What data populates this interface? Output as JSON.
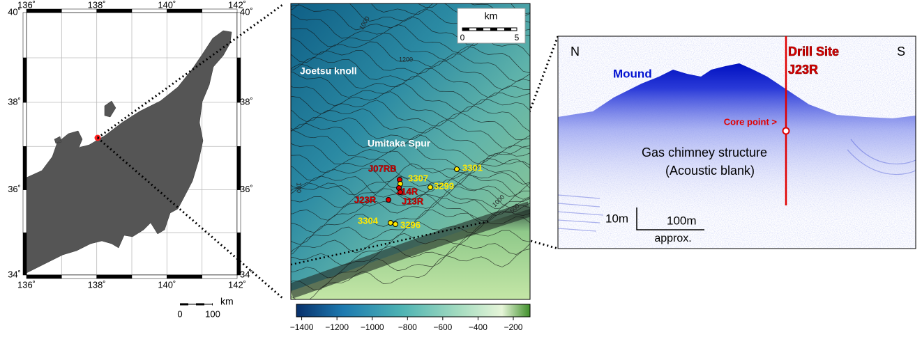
{
  "overview_map": {
    "lon_ticks": [
      {
        "value": 136,
        "label": "136˚"
      },
      {
        "value": 138,
        "label": "138˚"
      },
      {
        "value": 140,
        "label": "140˚"
      },
      {
        "value": 142,
        "label": "142˚"
      }
    ],
    "lat_ticks": [
      {
        "value": 34,
        "label": "34˚"
      },
      {
        "value": 36,
        "label": "36˚"
      },
      {
        "value": 38,
        "label": "38˚"
      },
      {
        "value": 40,
        "label": "40˚"
      }
    ],
    "scale_bar": {
      "unit": "km",
      "labels": [
        "0",
        "100"
      ]
    }
  },
  "bathymetry_map": {
    "features": [
      "Joetsu knoll",
      "Umitaka Spur"
    ],
    "sites": [
      {
        "label": "J07RB",
        "color": "#e00000"
      },
      {
        "label": "3307",
        "color": "#ffe800"
      },
      {
        "label": "3301",
        "color": "#ffe800"
      },
      {
        "label": "3299",
        "color": "#ffe800"
      },
      {
        "label": "J14R",
        "color": "#e00000"
      },
      {
        "label": "J13R",
        "color": "#e00000"
      },
      {
        "label": "J23R",
        "color": "#e00000"
      },
      {
        "label": "3304",
        "color": "#ffe800"
      },
      {
        "label": "3296",
        "color": "#ffe800"
      }
    ],
    "contour_labels": [
      "1000",
      "1200",
      "100",
      "1000",
      "500"
    ],
    "scale_bar": {
      "unit": "km",
      "labels": [
        "0",
        "5"
      ]
    }
  },
  "colorbar": {
    "lim": [
      -1430,
      -105
    ],
    "ticks": [
      {
        "value": -1400,
        "label": "−1400"
      },
      {
        "value": -1200,
        "label": "−1200"
      },
      {
        "value": -1000,
        "label": "−1000"
      },
      {
        "value": -800,
        "label": "−800"
      },
      {
        "value": -600,
        "label": "−600"
      },
      {
        "value": -400,
        "label": "−400"
      },
      {
        "value": -200,
        "label": "−200"
      }
    ]
  },
  "seismic_profile": {
    "left": "N",
    "right": "S",
    "mound": "Mound",
    "drill_site": "Drill Site",
    "site": "J23R",
    "core_point": "Core point >",
    "interpretation": [
      "Gas chimney structure",
      "(Acoustic blank)"
    ],
    "vertical_scale": "10m",
    "horizontal_scale": "100m",
    "scale_note": "approx."
  }
}
